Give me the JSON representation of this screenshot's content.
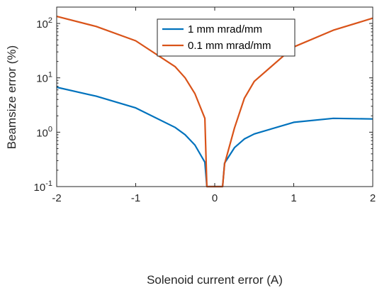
{
  "chart_data": {
    "type": "line",
    "xlabel": "Solenoid current error (A)",
    "ylabel": "Beamsize error (%)",
    "xlim": [
      -2,
      2
    ],
    "ylim": [
      0.1,
      200
    ],
    "yscale": "log",
    "grid": false,
    "legend_position": "top-center",
    "x_ticks": [
      {
        "value": -2,
        "label": "-2"
      },
      {
        "value": -1,
        "label": "-1"
      },
      {
        "value": 0,
        "label": "0"
      },
      {
        "value": 1,
        "label": "1"
      },
      {
        "value": 2,
        "label": "2"
      }
    ],
    "y_ticks": [
      {
        "value": 0.1,
        "base": "10",
        "exp": "-1"
      },
      {
        "value": 1,
        "base": "10",
        "exp": "0"
      },
      {
        "value": 10,
        "base": "10",
        "exp": "1"
      },
      {
        "value": 100,
        "base": "10",
        "exp": "2"
      }
    ],
    "series": [
      {
        "name": "1 mm mrad/mm",
        "color": "#0072BD",
        "points": [
          [
            -2,
            6.7
          ],
          [
            -1.5,
            4.6
          ],
          [
            -1,
            2.8
          ],
          [
            -0.5,
            1.22
          ],
          [
            -0.375,
            0.9
          ],
          [
            -0.25,
            0.58
          ],
          [
            -0.125,
            0.28
          ],
          [
            -0.1,
            0.1
          ],
          [
            0.1,
            0.1
          ],
          [
            0.125,
            0.27
          ],
          [
            0.25,
            0.52
          ],
          [
            0.375,
            0.75
          ],
          [
            0.5,
            0.93
          ],
          [
            1,
            1.52
          ],
          [
            1.5,
            1.8
          ],
          [
            2,
            1.75
          ]
        ]
      },
      {
        "name": "0.1 mm mrad/mm",
        "color": "#D95319",
        "points": [
          [
            -2,
            135
          ],
          [
            -1.5,
            88
          ],
          [
            -1,
            48
          ],
          [
            -0.5,
            16
          ],
          [
            -0.375,
            10
          ],
          [
            -0.25,
            5.1
          ],
          [
            -0.125,
            1.8
          ],
          [
            -0.1,
            0.1
          ],
          [
            0.1,
            0.1
          ],
          [
            0.125,
            0.26
          ],
          [
            0.25,
            1.2
          ],
          [
            0.375,
            4.2
          ],
          [
            0.5,
            8.6
          ],
          [
            1,
            37
          ],
          [
            1.5,
            75
          ],
          [
            2,
            125
          ]
        ]
      }
    ]
  }
}
